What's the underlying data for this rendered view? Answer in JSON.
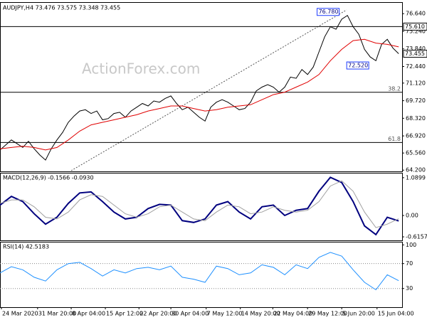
{
  "chart_data": [
    {
      "type": "line",
      "title": "AUDJPY,H4 73.476 73.575 73.348 73.455",
      "watermark": "ActionForex.com",
      "xlim": [
        0,
        70.6
      ],
      "ylim": [
        64.1,
        77.5
      ],
      "yticks": [
        {
          "value": 76.64,
          "label": "76.640"
        },
        {
          "value": 75.24,
          "label": "75.240"
        },
        {
          "value": 73.84,
          "label": "73.840"
        },
        {
          "value": 72.44,
          "label": "72.440"
        },
        {
          "value": 71.12,
          "label": "71.120"
        },
        {
          "value": 69.72,
          "label": "69.720"
        },
        {
          "value": 68.32,
          "label": "68.320"
        },
        {
          "value": 66.92,
          "label": "66.920"
        },
        {
          "value": 65.56,
          "label": "65.560"
        },
        {
          "value": 64.2,
          "label": "64.200"
        }
      ],
      "levels": [
        {
          "value": 75.61,
          "label": "75.610"
        },
        {
          "value": 73.455,
          "label": "73.455"
        }
      ],
      "fib_levels": [
        {
          "value": 70.39,
          "label": "38.2"
        },
        {
          "value": 66.4,
          "label": "61.8"
        }
      ],
      "annotations": [
        {
          "x": 59.8,
          "value": 76.78,
          "label": "76.780"
        },
        {
          "x": 65.0,
          "value": 72.52,
          "label": "72.520"
        }
      ],
      "series": [
        {
          "color": "#000000",
          "x": [
            0,
            1,
            2,
            3,
            4,
            5,
            6,
            7,
            8,
            9,
            10,
            11,
            12,
            13,
            14,
            15,
            16,
            17,
            18,
            19,
            20,
            21,
            22,
            23,
            24,
            25,
            26,
            27,
            28,
            29,
            30,
            31,
            32,
            33,
            34,
            35,
            36,
            37,
            38,
            39,
            40,
            41,
            42,
            43,
            44,
            45,
            46,
            47,
            48,
            49,
            50,
            51,
            52,
            53,
            54,
            55,
            56,
            57,
            58,
            59,
            60,
            61,
            62,
            63,
            64,
            65,
            66,
            67,
            68,
            69,
            70
          ],
          "values": [
            65.8,
            66.2,
            66.6,
            66.3,
            66.0,
            66.5,
            65.9,
            65.4,
            65.0,
            65.9,
            66.6,
            67.2,
            68.0,
            68.5,
            68.9,
            69.0,
            68.7,
            68.9,
            68.2,
            68.3,
            68.7,
            68.8,
            68.4,
            68.9,
            69.2,
            69.5,
            69.3,
            69.7,
            69.6,
            69.9,
            70.1,
            69.5,
            69.0,
            69.2,
            68.8,
            68.4,
            68.1,
            69.2,
            69.6,
            69.8,
            69.6,
            69.3,
            69.0,
            69.1,
            69.6,
            70.5,
            70.8,
            71.0,
            70.8,
            70.4,
            70.8,
            71.6,
            71.5,
            72.2,
            71.8,
            72.4,
            73.6,
            74.8,
            75.6,
            75.4,
            76.2,
            76.5,
            75.6,
            75.0,
            73.8,
            73.2,
            72.9,
            74.2,
            74.6,
            73.9,
            73.455
          ]
        },
        {
          "color": "#e00000",
          "x": [
            0,
            2,
            4,
            6,
            8,
            10,
            12,
            14,
            16,
            18,
            20,
            22,
            24,
            26,
            28,
            30,
            32,
            34,
            36,
            38,
            40,
            42,
            44,
            46,
            48,
            50,
            52,
            54,
            56,
            58,
            60,
            62,
            64,
            66,
            68,
            70
          ],
          "values": [
            65.9,
            66.0,
            66.1,
            66.0,
            65.8,
            66.0,
            66.6,
            67.3,
            67.8,
            68.0,
            68.2,
            68.4,
            68.6,
            68.9,
            69.1,
            69.3,
            69.3,
            69.1,
            68.9,
            69.0,
            69.2,
            69.3,
            69.4,
            69.8,
            70.2,
            70.4,
            70.8,
            71.2,
            71.8,
            72.9,
            73.8,
            74.5,
            74.6,
            74.3,
            74.2,
            74.0
          ]
        }
      ]
    },
    {
      "type": "line",
      "title": "MACD(12,26,9) -0.1566 -0.0930",
      "xlim": [
        0,
        70.6
      ],
      "ylim": [
        -0.717,
        1.231
      ],
      "yticks": [
        1.0899,
        {
          "value": 0,
          "label": "0.00"
        },
        -0.6157
      ],
      "series": [
        {
          "color": "#00007f",
          "x": [
            0,
            2,
            4,
            6,
            8,
            10,
            12,
            14,
            16,
            18,
            20,
            22,
            24,
            26,
            28,
            30,
            32,
            34,
            36,
            38,
            40,
            42,
            44,
            46,
            48,
            50,
            52,
            54,
            56,
            58,
            60,
            62,
            64,
            66,
            68,
            70
          ],
          "values": [
            0.3,
            0.55,
            0.4,
            0.05,
            -0.25,
            -0.05,
            0.35,
            0.65,
            0.68,
            0.4,
            0.1,
            -0.1,
            -0.05,
            0.2,
            0.32,
            0.3,
            -0.15,
            -0.2,
            -0.1,
            0.3,
            0.4,
            0.1,
            -0.1,
            0.25,
            0.3,
            0.0,
            0.15,
            0.2,
            0.7,
            1.1,
            0.95,
            0.4,
            -0.3,
            -0.55,
            -0.05,
            -0.1566
          ]
        },
        {
          "color": "#a0a0a0",
          "x": [
            0,
            2,
            4,
            6,
            8,
            10,
            12,
            14,
            16,
            18,
            20,
            22,
            24,
            26,
            28,
            30,
            32,
            34,
            36,
            38,
            40,
            42,
            44,
            46,
            48,
            50,
            52,
            54,
            56,
            58,
            60,
            62,
            64,
            66,
            68,
            70
          ],
          "values": [
            0.35,
            0.45,
            0.45,
            0.25,
            -0.05,
            -0.1,
            0.1,
            0.45,
            0.6,
            0.55,
            0.3,
            0.05,
            -0.05,
            0.05,
            0.25,
            0.3,
            0.1,
            -0.1,
            -0.15,
            0.1,
            0.3,
            0.25,
            0.05,
            0.1,
            0.25,
            0.15,
            0.1,
            0.15,
            0.4,
            0.85,
            1.0,
            0.7,
            0.1,
            -0.35,
            -0.25,
            -0.093
          ]
        }
      ]
    },
    {
      "type": "line",
      "title": "RSI(14) 42.5183",
      "xlim": [
        0,
        70.6
      ],
      "ylim": [
        0,
        105
      ],
      "yticks": [
        100,
        70,
        30
      ],
      "levels": [
        70,
        30
      ],
      "xticks": [
        {
          "value": 0.25,
          "label": "24 Mar 2020"
        },
        {
          "value": 6.6,
          "label": "31 Mar 20:00"
        },
        {
          "value": 12.5,
          "label": "8 Apr 04:00"
        },
        {
          "value": 18.5,
          "label": "15 Apr 12:00"
        },
        {
          "value": 24.4,
          "label": "22 Apr 20:00"
        },
        {
          "value": 30,
          "label": "30 Apr 04:00"
        },
        {
          "value": 36.2,
          "label": "7 May 12:00"
        },
        {
          "value": 42.2,
          "label": "14 May 20:00"
        },
        {
          "value": 47.9,
          "label": "22 May 04:00"
        },
        {
          "value": 54,
          "label": "29 May 12:00"
        },
        {
          "value": 60,
          "label": "5 Jun 20:00"
        },
        {
          "value": 66.2,
          "label": "15 Jun 04:00"
        }
      ],
      "series": [
        {
          "color": "#1e90ff",
          "x": [
            0,
            2,
            4,
            6,
            8,
            10,
            12,
            14,
            16,
            18,
            20,
            22,
            24,
            26,
            28,
            30,
            32,
            34,
            36,
            38,
            40,
            42,
            44,
            46,
            48,
            50,
            52,
            54,
            56,
            58,
            60,
            62,
            64,
            66,
            68,
            70
          ],
          "values": [
            55,
            65,
            60,
            48,
            42,
            60,
            70,
            72,
            62,
            50,
            60,
            55,
            62,
            64,
            60,
            66,
            48,
            45,
            40,
            66,
            62,
            52,
            55,
            68,
            64,
            52,
            68,
            62,
            80,
            88,
            82,
            60,
            40,
            28,
            52,
            42.5183
          ]
        }
      ]
    }
  ]
}
